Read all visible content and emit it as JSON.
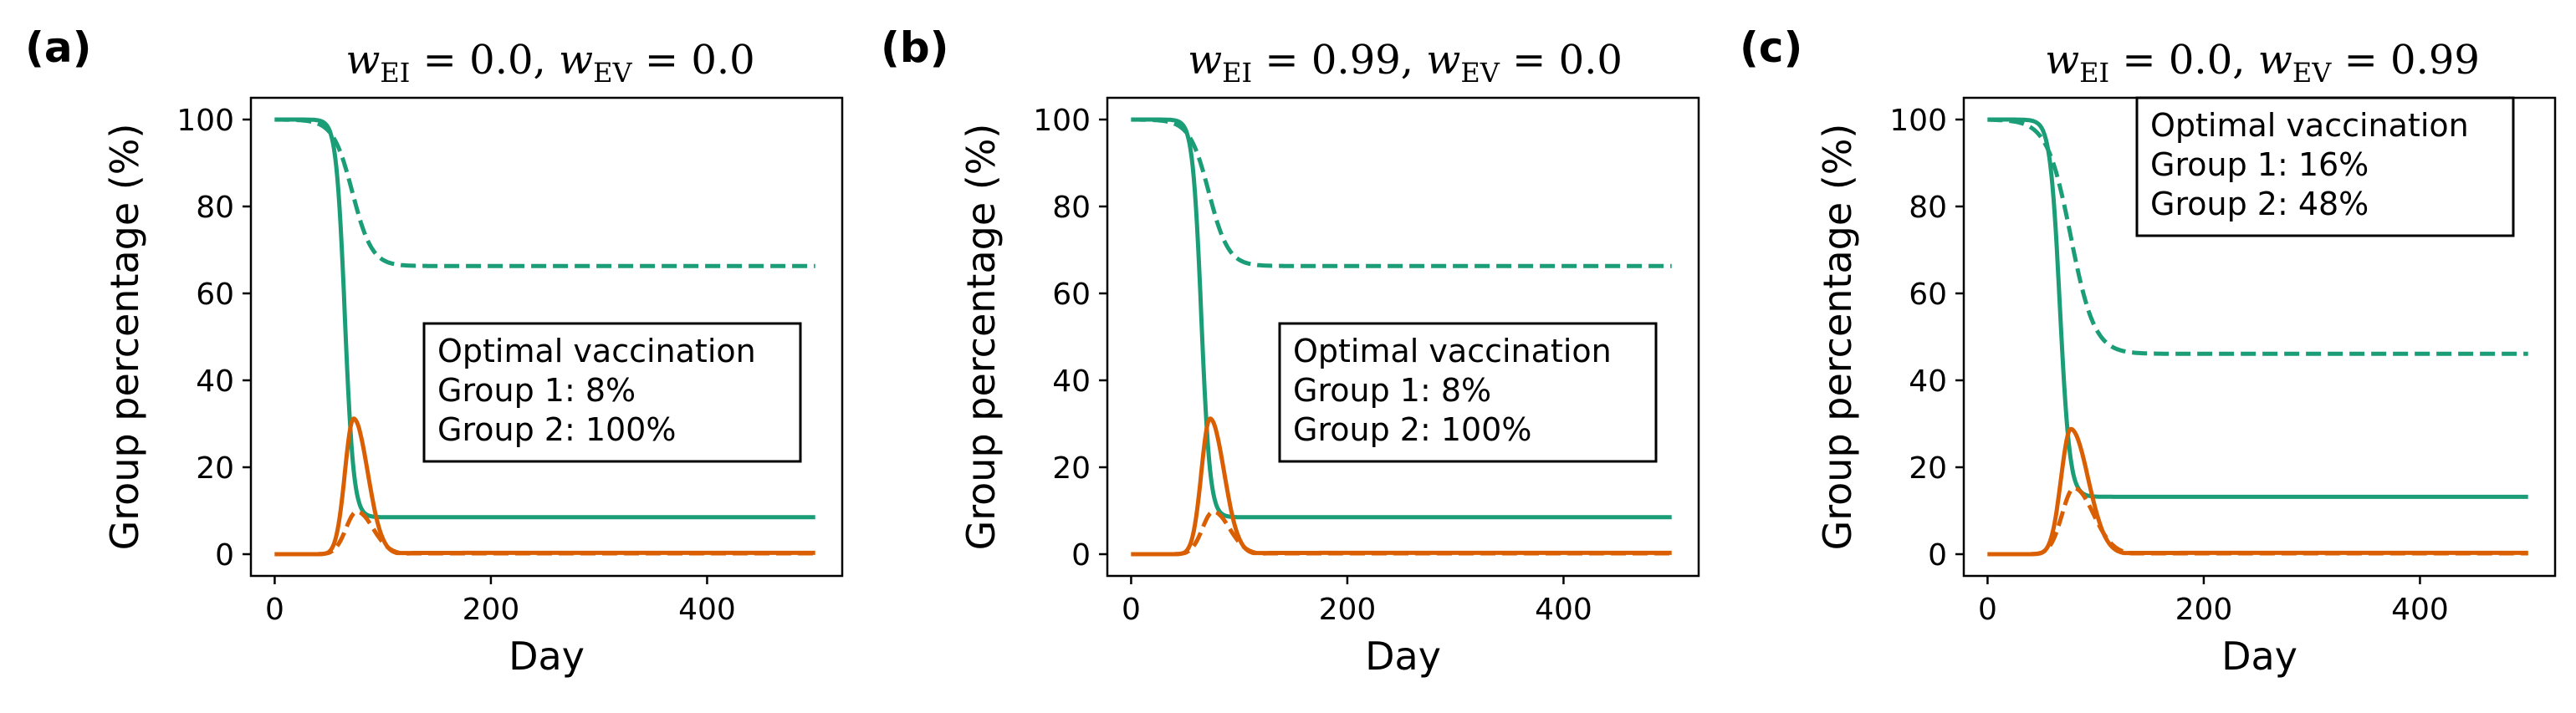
{
  "chart_data": [
    {
      "type": "line",
      "panel_label": "(a)",
      "title": {
        "w_EI": "0.0",
        "w_EV": "0.0"
      },
      "xlabel": "Day",
      "ylabel": "Group percentage (%)",
      "xlim": [
        -22,
        525
      ],
      "ylim": [
        -5,
        105
      ],
      "xticks": [
        0,
        200,
        400
      ],
      "yticks": [
        0,
        20,
        40,
        60,
        80,
        100
      ],
      "annotation": {
        "lines": [
          "Optimal vaccination",
          "Group 1: 8%",
          "Group 2: 100%"
        ],
        "position": "center-right"
      },
      "series": [
        {
          "color": "#1b9e77",
          "dash": "solid",
          "model": "sigmoid",
          "from": 100,
          "to": 8.5,
          "midpoint": 65,
          "width": 4,
          "points": [
            [
              0,
              100
            ],
            [
              40,
              99.5
            ],
            [
              55,
              96
            ],
            [
              60,
              88
            ],
            [
              65,
              54
            ],
            [
              70,
              25
            ],
            [
              75,
              13
            ],
            [
              85,
              9.5
            ],
            [
              100,
              8.7
            ],
            [
              200,
              8.5
            ],
            [
              500,
              8.5
            ]
          ]
        },
        {
          "color": "#1b9e77",
          "dash": "dashed",
          "model": "sigmoid",
          "from": 100,
          "to": 66.3,
          "midpoint": 72,
          "width": 9,
          "points": [
            [
              0,
              100
            ],
            [
              50,
              99
            ],
            [
              60,
              95
            ],
            [
              70,
              86
            ],
            [
              80,
              75
            ],
            [
              90,
              69.5
            ],
            [
              110,
              66.8
            ],
            [
              200,
              66.3
            ],
            [
              500,
              66.3
            ]
          ]
        },
        {
          "color": "#d95f02",
          "dash": "solid",
          "model": "peak",
          "peak": 31.2,
          "peak_day": 73,
          "sigma_left": 8,
          "sigma_right": 13,
          "tail": 0.3,
          "points": [
            [
              0,
              0
            ],
            [
              50,
              1
            ],
            [
              60,
              9
            ],
            [
              68,
              26
            ],
            [
              73,
              31.2
            ],
            [
              80,
              25
            ],
            [
              90,
              11
            ],
            [
              100,
              4
            ],
            [
              120,
              1
            ],
            [
              200,
              0.3
            ],
            [
              500,
              0.3
            ]
          ]
        },
        {
          "color": "#d95f02",
          "dash": "dashed",
          "model": "peak",
          "peak": 9.8,
          "peak_day": 76,
          "sigma_left": 10,
          "sigma_right": 15,
          "tail": 0.2,
          "points": [
            [
              0,
              0
            ],
            [
              55,
              1
            ],
            [
              65,
              5
            ],
            [
              76,
              9.8
            ],
            [
              90,
              5
            ],
            [
              105,
              1.5
            ],
            [
              130,
              0.3
            ],
            [
              500,
              0.2
            ]
          ]
        }
      ]
    },
    {
      "type": "line",
      "panel_label": "(b)",
      "title": {
        "w_EI": "0.99",
        "w_EV": "0.0"
      },
      "xlabel": "Day",
      "ylabel": "Group percentage (%)",
      "xlim": [
        -22,
        525
      ],
      "ylim": [
        -5,
        105
      ],
      "xticks": [
        0,
        200,
        400
      ],
      "yticks": [
        0,
        20,
        40,
        60,
        80,
        100
      ],
      "annotation": {
        "lines": [
          "Optimal vaccination",
          "Group 1: 8%",
          "Group 2: 100%"
        ],
        "position": "center-right"
      },
      "series": [
        {
          "color": "#1b9e77",
          "dash": "solid",
          "model": "sigmoid",
          "from": 100,
          "to": 8.5,
          "midpoint": 65,
          "width": 4,
          "points": [
            [
              0,
              100
            ],
            [
              40,
              99.5
            ],
            [
              55,
              96
            ],
            [
              60,
              88
            ],
            [
              65,
              54
            ],
            [
              70,
              25
            ],
            [
              75,
              13
            ],
            [
              85,
              9.5
            ],
            [
              100,
              8.7
            ],
            [
              200,
              8.5
            ],
            [
              500,
              8.5
            ]
          ]
        },
        {
          "color": "#1b9e77",
          "dash": "dashed",
          "model": "sigmoid",
          "from": 100,
          "to": 66.3,
          "midpoint": 72,
          "width": 9,
          "points": [
            [
              0,
              100
            ],
            [
              50,
              99
            ],
            [
              60,
              95
            ],
            [
              70,
              86
            ],
            [
              80,
              75
            ],
            [
              90,
              69.5
            ],
            [
              110,
              66.8
            ],
            [
              200,
              66.3
            ],
            [
              500,
              66.3
            ]
          ]
        },
        {
          "color": "#d95f02",
          "dash": "solid",
          "model": "peak",
          "peak": 31.2,
          "peak_day": 73,
          "sigma_left": 8,
          "sigma_right": 13,
          "tail": 0.3,
          "points": [
            [
              0,
              0
            ],
            [
              50,
              1
            ],
            [
              60,
              9
            ],
            [
              68,
              26
            ],
            [
              73,
              31.2
            ],
            [
              80,
              25
            ],
            [
              90,
              11
            ],
            [
              100,
              4
            ],
            [
              120,
              1
            ],
            [
              200,
              0.3
            ],
            [
              500,
              0.3
            ]
          ]
        },
        {
          "color": "#d95f02",
          "dash": "dashed",
          "model": "peak",
          "peak": 9.8,
          "peak_day": 76,
          "sigma_left": 10,
          "sigma_right": 15,
          "tail": 0.2,
          "points": [
            [
              0,
              0
            ],
            [
              55,
              1
            ],
            [
              65,
              5
            ],
            [
              76,
              9.8
            ],
            [
              90,
              5
            ],
            [
              105,
              1.5
            ],
            [
              130,
              0.3
            ],
            [
              500,
              0.2
            ]
          ]
        }
      ]
    },
    {
      "type": "line",
      "panel_label": "(c)",
      "title": {
        "w_EI": "0.0",
        "w_EV": "0.99"
      },
      "xlabel": "Day",
      "ylabel": "Group percentage (%)",
      "xlim": [
        -22,
        525
      ],
      "ylim": [
        -5,
        105
      ],
      "xticks": [
        0,
        200,
        400
      ],
      "yticks": [
        0,
        20,
        40,
        60,
        80,
        100
      ],
      "annotation": {
        "lines": [
          "Optimal vaccination",
          "Group 1: 16%",
          "Group 2: 48%"
        ],
        "position": "top-right"
      },
      "series": [
        {
          "color": "#1b9e77",
          "dash": "solid",
          "model": "sigmoid",
          "from": 100,
          "to": 13.2,
          "midpoint": 67,
          "width": 4.5,
          "points": [
            [
              0,
              100
            ],
            [
              40,
              99.5
            ],
            [
              55,
              96
            ],
            [
              62,
              85
            ],
            [
              67,
              56
            ],
            [
              72,
              30
            ],
            [
              80,
              17
            ],
            [
              95,
              13.8
            ],
            [
              200,
              13.2
            ],
            [
              500,
              13.2
            ]
          ]
        },
        {
          "color": "#1b9e77",
          "dash": "dashed",
          "model": "sigmoid",
          "from": 100,
          "to": 46.1,
          "midpoint": 77,
          "width": 11,
          "points": [
            [
              0,
              100
            ],
            [
              50,
              99
            ],
            [
              65,
              92
            ],
            [
              77,
              73
            ],
            [
              90,
              56
            ],
            [
              105,
              49
            ],
            [
              130,
              46.5
            ],
            [
              200,
              46.1
            ],
            [
              500,
              46.1
            ]
          ]
        },
        {
          "color": "#d95f02",
          "dash": "solid",
          "model": "peak",
          "peak": 28.8,
          "peak_day": 77,
          "sigma_left": 9,
          "sigma_right": 16,
          "tail": 0.3,
          "points": [
            [
              0,
              0
            ],
            [
              50,
              1
            ],
            [
              62,
              9
            ],
            [
              72,
              25
            ],
            [
              77,
              28.8
            ],
            [
              85,
              24
            ],
            [
              100,
              9
            ],
            [
              115,
              3
            ],
            [
              140,
              0.6
            ],
            [
              500,
              0.3
            ]
          ]
        },
        {
          "color": "#d95f02",
          "dash": "dashed",
          "model": "peak",
          "peak": 15.2,
          "peak_day": 80,
          "sigma_left": 11,
          "sigma_right": 18,
          "tail": 0.2,
          "points": [
            [
              0,
              0
            ],
            [
              55,
              1
            ],
            [
              68,
              7
            ],
            [
              80,
              15.2
            ],
            [
              95,
              9
            ],
            [
              115,
              2.5
            ],
            [
              140,
              0.4
            ],
            [
              500,
              0.2
            ]
          ]
        }
      ]
    }
  ]
}
